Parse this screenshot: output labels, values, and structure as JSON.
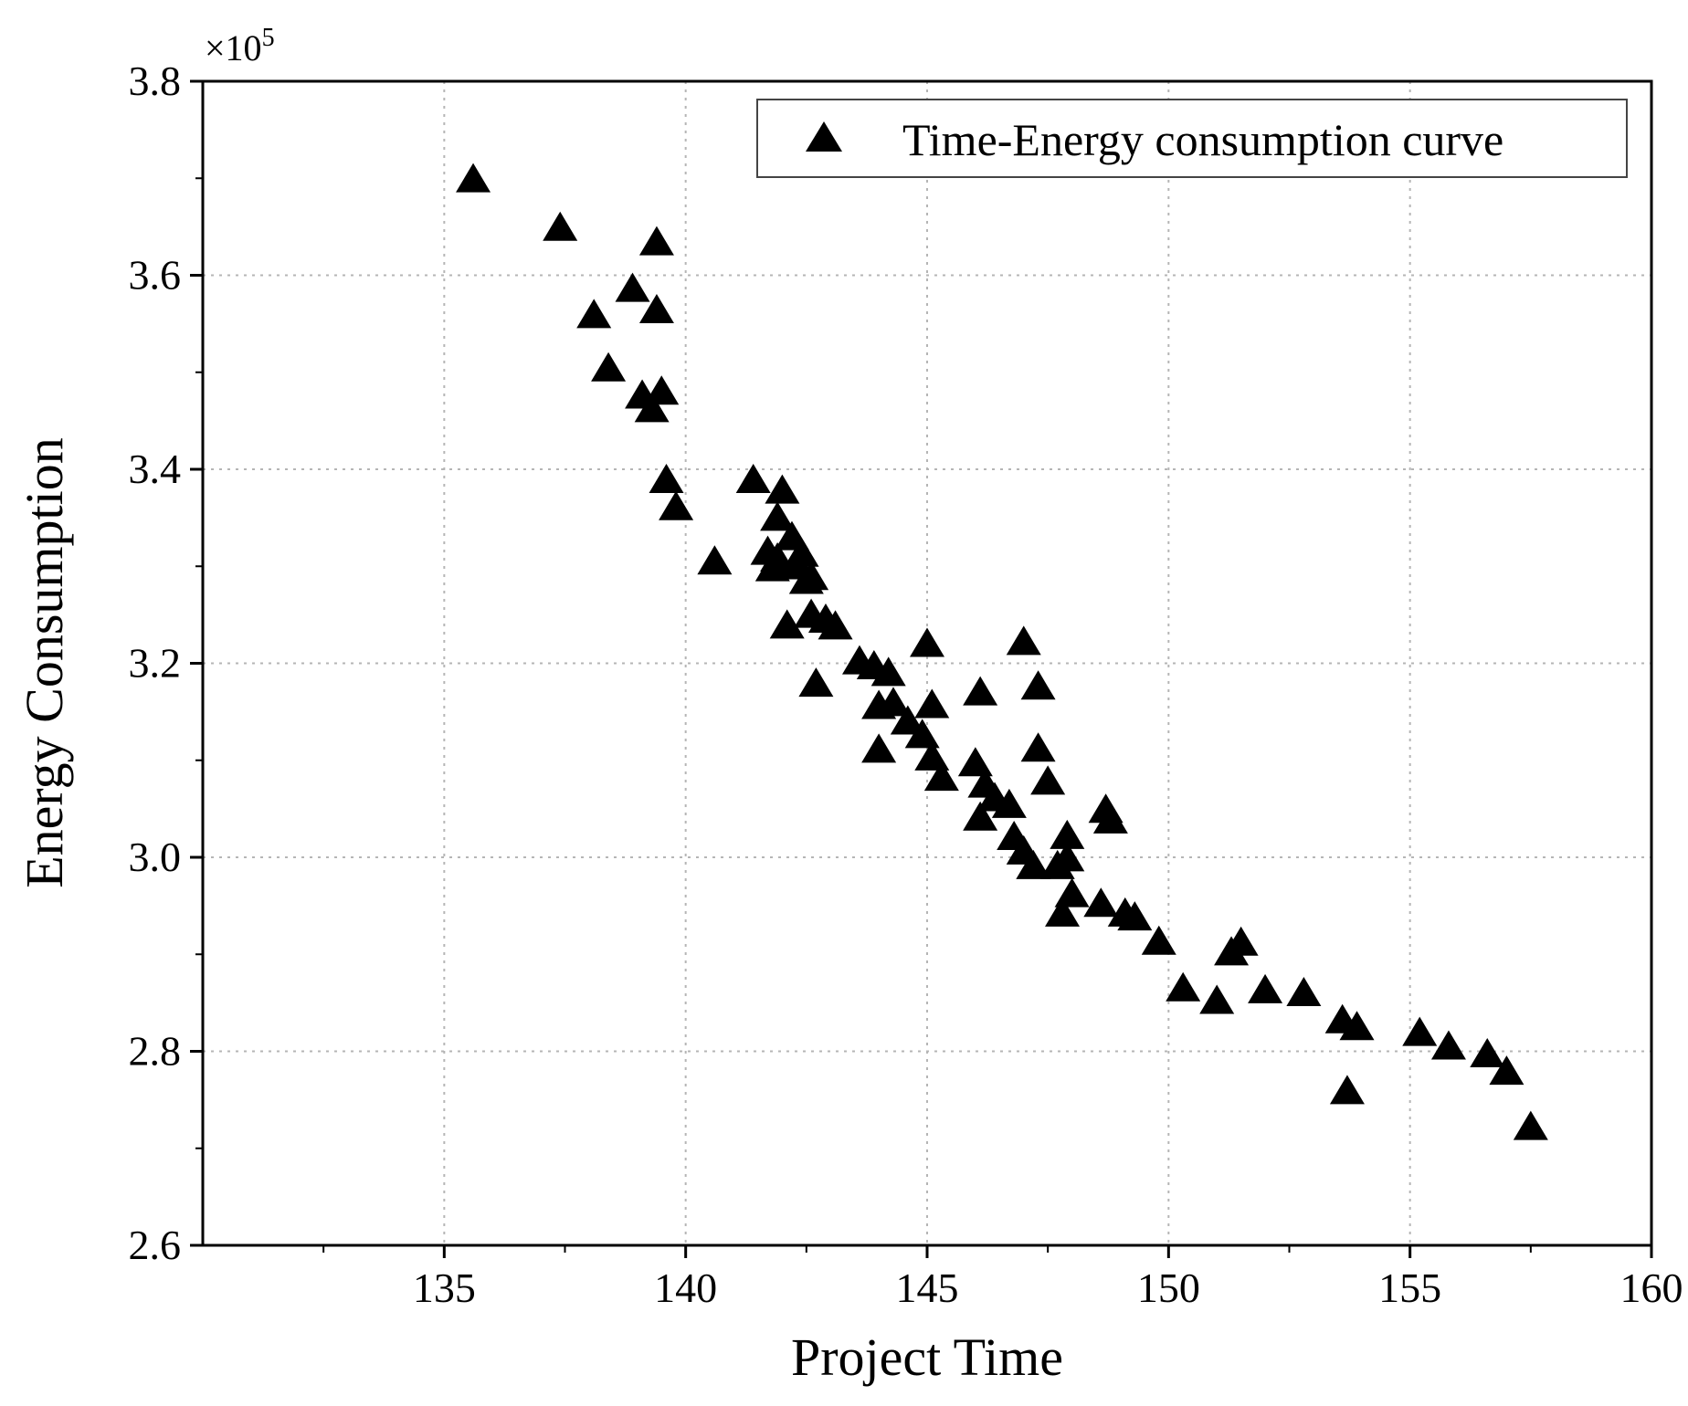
{
  "chart_data": {
    "type": "scatter",
    "title": "",
    "xlabel": "Project Time",
    "ylabel": "Energy Consumption",
    "y_multiplier": {
      "base": "×10",
      "exponent": "5"
    },
    "xlim": [
      130,
      160
    ],
    "ylim": [
      2.6,
      3.8
    ],
    "xticks": [
      135,
      140,
      145,
      150,
      155,
      160
    ],
    "xtick_labels": [
      "135",
      "140",
      "145",
      "150",
      "155",
      "160"
    ],
    "yticks": [
      2.6,
      2.8,
      3.0,
      3.2,
      3.4,
      3.6,
      3.8
    ],
    "ytick_labels": [
      "2.6",
      "2.8",
      "3.0",
      "3.2",
      "3.4",
      "3.6",
      "3.8"
    ],
    "grid": true,
    "legend": {
      "position": "top-right",
      "entries": [
        "Time-Energy consumption curve"
      ]
    },
    "marker": {
      "shape": "triangle",
      "color": "#000000"
    },
    "series": [
      {
        "name": "Time-Energy consumption curve",
        "points": [
          [
            135.6,
            3.697
          ],
          [
            137.4,
            3.647
          ],
          [
            138.1,
            3.557
          ],
          [
            138.4,
            3.502
          ],
          [
            138.9,
            3.584
          ],
          [
            139.1,
            3.474
          ],
          [
            139.3,
            3.46
          ],
          [
            139.4,
            3.632
          ],
          [
            139.4,
            3.562
          ],
          [
            139.5,
            3.478
          ],
          [
            139.6,
            3.387
          ],
          [
            139.8,
            3.359
          ],
          [
            140.6,
            3.303
          ],
          [
            141.4,
            3.387
          ],
          [
            141.7,
            3.313
          ],
          [
            141.8,
            3.296
          ],
          [
            141.9,
            3.348
          ],
          [
            141.9,
            3.306
          ],
          [
            142.0,
            3.376
          ],
          [
            142.1,
            3.237
          ],
          [
            142.2,
            3.328
          ],
          [
            142.3,
            3.298
          ],
          [
            142.4,
            3.311
          ],
          [
            142.5,
            3.283
          ],
          [
            142.6,
            3.287
          ],
          [
            142.6,
            3.248
          ],
          [
            142.7,
            3.177
          ],
          [
            142.9,
            3.243
          ],
          [
            143.1,
            3.236
          ],
          [
            143.6,
            3.2
          ],
          [
            143.9,
            3.195
          ],
          [
            144.0,
            3.154
          ],
          [
            144.0,
            3.109
          ],
          [
            144.2,
            3.188
          ],
          [
            144.3,
            3.157
          ],
          [
            144.6,
            3.138
          ],
          [
            144.9,
            3.124
          ],
          [
            145.0,
            3.218
          ],
          [
            145.1,
            3.155
          ],
          [
            145.1,
            3.101
          ],
          [
            145.3,
            3.08
          ],
          [
            146.0,
            3.095
          ],
          [
            146.1,
            3.168
          ],
          [
            146.1,
            3.039
          ],
          [
            146.2,
            3.073
          ],
          [
            146.4,
            3.059
          ],
          [
            146.7,
            3.052
          ],
          [
            146.8,
            3.019
          ],
          [
            147.0,
            3.22
          ],
          [
            147.0,
            3.004
          ],
          [
            147.2,
            2.989
          ],
          [
            147.3,
            3.174
          ],
          [
            147.3,
            3.11
          ],
          [
            147.5,
            3.076
          ],
          [
            147.7,
            2.989
          ],
          [
            147.8,
            2.94
          ],
          [
            147.9,
            3.02
          ],
          [
            147.9,
            2.997
          ],
          [
            148.0,
            2.96
          ],
          [
            148.6,
            2.95
          ],
          [
            148.7,
            3.047
          ],
          [
            148.8,
            3.036
          ],
          [
            149.1,
            2.94
          ],
          [
            149.3,
            2.936
          ],
          [
            149.8,
            2.911
          ],
          [
            150.3,
            2.863
          ],
          [
            151.0,
            2.85
          ],
          [
            151.3,
            2.9
          ],
          [
            151.5,
            2.91
          ],
          [
            152.0,
            2.861
          ],
          [
            152.8,
            2.858
          ],
          [
            153.6,
            2.83
          ],
          [
            153.7,
            2.757
          ],
          [
            153.9,
            2.823
          ],
          [
            155.2,
            2.817
          ],
          [
            155.8,
            2.803
          ],
          [
            156.6,
            2.795
          ],
          [
            157.0,
            2.777
          ],
          [
            157.5,
            2.72
          ]
        ]
      }
    ]
  }
}
